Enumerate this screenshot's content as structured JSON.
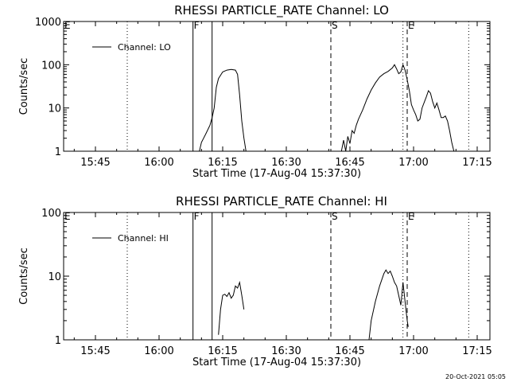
{
  "chart_data": [
    {
      "type": "line",
      "title": "RHESSI PARTICLE_RATE Channel: LO",
      "xlabel": "Start Time (17-Aug-04 15:37:30)",
      "ylabel": "Counts/sec",
      "xlim": [
        "15:37:30",
        "17:18:00"
      ],
      "ylim": [
        1,
        1000
      ],
      "yscale": "log",
      "xticks": [
        "15:45",
        "16:00",
        "16:15",
        "16:30",
        "16:45",
        "17:00",
        "17:15"
      ],
      "yticks": [
        "1",
        "10",
        "100",
        "1000"
      ],
      "legend": {
        "position": "top-left",
        "entries": [
          "Channel: LO"
        ]
      },
      "markers": [
        {
          "label": "E",
          "time": "15:37:30",
          "style": "dotted"
        },
        {
          "label": "",
          "time": "15:52:30",
          "style": "dotted"
        },
        {
          "label": "F",
          "time": "16:08:00",
          "style": "solid"
        },
        {
          "label": "",
          "time": "16:12:30",
          "style": "solid"
        },
        {
          "label": "S",
          "time": "16:40:30",
          "style": "dashed"
        },
        {
          "label": "",
          "time": "16:57:30",
          "style": "dotted"
        },
        {
          "label": "E",
          "time": "16:58:30",
          "style": "dashed"
        },
        {
          "label": "",
          "time": "17:13:00",
          "style": "dotted"
        }
      ],
      "series": [
        {
          "name": "Channel: LO",
          "segments": [
            [
              [
                "16:09:30",
                1
              ],
              [
                "16:10:00",
                1.6
              ],
              [
                "16:11:00",
                2.5
              ],
              [
                "16:12:00",
                4
              ],
              [
                "16:12:30",
                6
              ],
              [
                "16:13:00",
                10
              ],
              [
                "16:13:30",
                30
              ],
              [
                "16:14:00",
                48
              ],
              [
                "16:15:00",
                68
              ],
              [
                "16:16:00",
                75
              ],
              [
                "16:17:00",
                78
              ],
              [
                "16:18:00",
                75
              ],
              [
                "16:18:30",
                60
              ],
              [
                "16:19:00",
                20
              ],
              [
                "16:19:30",
                5
              ],
              [
                "16:20:00",
                2
              ],
              [
                "16:20:30",
                1
              ]
            ],
            [
              [
                "16:43:00",
                1
              ],
              [
                "16:43:30",
                1.8
              ],
              [
                "16:44:00",
                1
              ],
              [
                "16:44:30",
                2.2
              ],
              [
                "16:45:00",
                1.5
              ],
              [
                "16:45:30",
                3
              ],
              [
                "16:46:00",
                2.6
              ],
              [
                "16:46:30",
                4
              ],
              [
                "16:47:00",
                5.5
              ],
              [
                "16:48:00",
                9
              ],
              [
                "16:49:00",
                16
              ],
              [
                "16:50:00",
                26
              ],
              [
                "16:51:00",
                38
              ],
              [
                "16:52:00",
                52
              ],
              [
                "16:53:00",
                62
              ],
              [
                "16:54:00",
                70
              ],
              [
                "16:55:00",
                84
              ],
              [
                "16:55:30",
                100
              ],
              [
                "16:56:00",
                80
              ],
              [
                "16:56:30",
                62
              ],
              [
                "16:57:00",
                68
              ],
              [
                "16:57:30",
                100
              ],
              [
                "16:58:00",
                75
              ],
              [
                "16:58:30",
                45
              ],
              [
                "16:59:00",
                25
              ],
              [
                "16:59:30",
                12
              ],
              [
                "17:00:00",
                9
              ],
              [
                "17:00:30",
                7
              ],
              [
                "17:01:00",
                5
              ],
              [
                "17:01:30",
                5.5
              ],
              [
                "17:02:00",
                10
              ],
              [
                "17:03:00",
                18
              ],
              [
                "17:03:30",
                25
              ],
              [
                "17:04:00",
                22
              ],
              [
                "17:04:30",
                14
              ],
              [
                "17:05:00",
                10
              ],
              [
                "17:05:30",
                13
              ],
              [
                "17:06:00",
                9
              ],
              [
                "17:06:30",
                6
              ],
              [
                "17:07:00",
                6
              ],
              [
                "17:07:30",
                6.5
              ],
              [
                "17:08:00",
                5
              ],
              [
                "17:08:30",
                3
              ],
              [
                "17:09:00",
                1.6
              ],
              [
                "17:09:30",
                1
              ]
            ]
          ]
        }
      ]
    },
    {
      "type": "line",
      "title": "RHESSI PARTICLE_RATE Channel: HI",
      "xlabel": "Start Time (17-Aug-04 15:37:30)",
      "ylabel": "Counts/sec",
      "xlim": [
        "15:37:30",
        "17:18:00"
      ],
      "ylim": [
        1,
        100
      ],
      "yscale": "log",
      "xticks": [
        "15:45",
        "16:00",
        "16:15",
        "16:30",
        "16:45",
        "17:00",
        "17:15"
      ],
      "yticks": [
        "1",
        "10",
        "100"
      ],
      "legend": {
        "position": "top-left",
        "entries": [
          "Channel: HI"
        ]
      },
      "markers": [
        {
          "label": "E",
          "time": "15:37:30",
          "style": "dotted"
        },
        {
          "label": "",
          "time": "15:52:30",
          "style": "dotted"
        },
        {
          "label": "F",
          "time": "16:08:00",
          "style": "solid"
        },
        {
          "label": "",
          "time": "16:12:30",
          "style": "solid"
        },
        {
          "label": "S",
          "time": "16:40:30",
          "style": "dashed"
        },
        {
          "label": "",
          "time": "16:57:30",
          "style": "dotted"
        },
        {
          "label": "E",
          "time": "16:58:30",
          "style": "dashed"
        },
        {
          "label": "",
          "time": "17:13:00",
          "style": "dotted"
        }
      ],
      "series": [
        {
          "name": "Channel: HI",
          "segments": [
            [
              [
                "16:14:00",
                1.2
              ],
              [
                "16:14:30",
                3
              ],
              [
                "16:15:00",
                5
              ],
              [
                "16:15:30",
                5.2
              ],
              [
                "16:16:00",
                4.8
              ],
              [
                "16:16:30",
                5.5
              ],
              [
                "16:17:00",
                4.5
              ],
              [
                "16:17:30",
                5
              ],
              [
                "16:18:00",
                7
              ],
              [
                "16:18:30",
                6.5
              ],
              [
                "16:19:00",
                8
              ],
              [
                "16:19:30",
                5
              ],
              [
                "16:20:00",
                3
              ]
            ],
            [
              [
                "16:49:30",
                1
              ],
              [
                "16:50:00",
                2
              ],
              [
                "16:51:00",
                4
              ],
              [
                "16:52:00",
                7
              ],
              [
                "16:53:00",
                11
              ],
              [
                "16:53:30",
                12.5
              ],
              [
                "16:54:00",
                11
              ],
              [
                "16:54:30",
                12
              ],
              [
                "16:55:00",
                10
              ],
              [
                "16:55:30",
                8
              ],
              [
                "16:56:00",
                7
              ],
              [
                "16:56:30",
                5
              ],
              [
                "16:57:00",
                3.5
              ],
              [
                "16:57:30",
                8
              ],
              [
                "16:58:00",
                4
              ],
              [
                "16:58:30",
                2
              ],
              [
                "16:58:45",
                1.6
              ]
            ]
          ]
        }
      ]
    }
  ],
  "footer": "20-Oct-2021 05:05"
}
